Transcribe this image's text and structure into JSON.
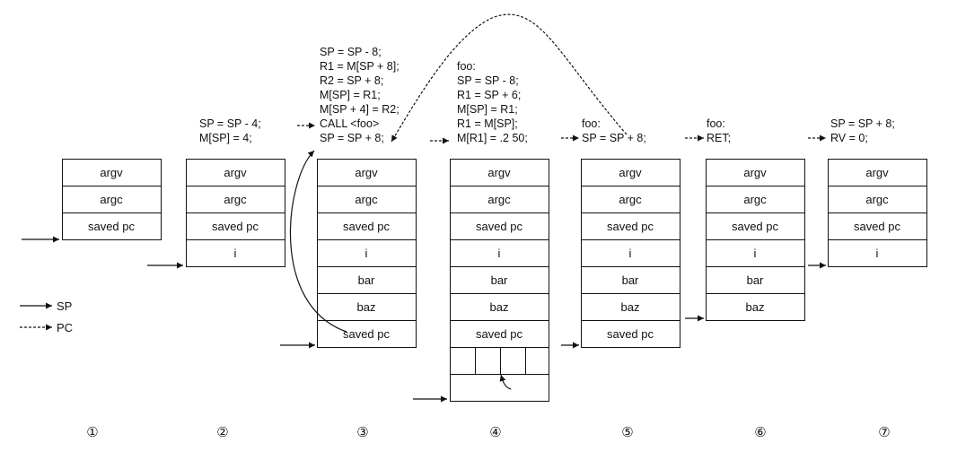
{
  "legend": {
    "sp_label": "SP",
    "pc_label": "PC"
  },
  "frames": [
    {
      "step": "①",
      "code": [],
      "cells": [
        "argv",
        "argc",
        "saved pc"
      ]
    },
    {
      "step": "②",
      "code": [
        "SP = SP - 4;",
        "M[SP] = 4;"
      ],
      "cells": [
        "argv",
        "argc",
        "saved pc",
        "i"
      ]
    },
    {
      "step": "③",
      "code": [
        "SP = SP - 8;",
        "R1 = M[SP + 8];",
        "R2 = SP + 8;",
        "M[SP] = R1;",
        "M[SP + 4] = R2;",
        "CALL <foo>",
        "SP = SP + 8;"
      ],
      "cells": [
        "argv",
        "argc",
        "saved pc",
        "i",
        "bar",
        "baz",
        "saved pc"
      ]
    },
    {
      "step": "④",
      "code": [
        "foo:",
        "SP = SP - 8;",
        "R1 = SP + 6;",
        "M[SP] = R1;",
        "R1 = M[SP];",
        "M[R1] = .2 50;"
      ],
      "cells": [
        "argv",
        "argc",
        "saved pc",
        "i",
        "bar",
        "baz",
        "saved pc",
        "",
        ""
      ]
    },
    {
      "step": "⑤",
      "code": [
        "foo:",
        "SP = SP + 8;"
      ],
      "cells": [
        "argv",
        "argc",
        "saved pc",
        "i",
        "bar",
        "baz",
        "saved pc"
      ]
    },
    {
      "step": "⑥",
      "code": [
        "foo:",
        "RET;"
      ],
      "cells": [
        "argv",
        "argc",
        "saved pc",
        "i",
        "bar",
        "baz"
      ]
    },
    {
      "step": "⑦",
      "code": [
        "SP = SP + 8;",
        "RV = 0;"
      ],
      "cells": [
        "argv",
        "argc",
        "saved pc",
        "i"
      ]
    }
  ]
}
